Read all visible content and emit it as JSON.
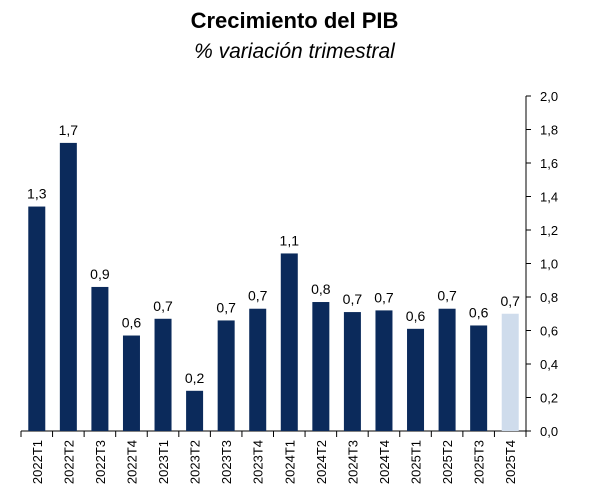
{
  "chart_data": {
    "type": "bar",
    "title": "Crecimiento del PIB",
    "subtitle": "% variación trimestral",
    "categories": [
      "2022T1",
      "2022T2",
      "2022T3",
      "2022T4",
      "2023T1",
      "2023T2",
      "2023T3",
      "2023T4",
      "2024T1",
      "2024T2",
      "2024T3",
      "2024T4",
      "2025T1",
      "2025T2",
      "2025T3",
      "2025T4"
    ],
    "values": [
      1.34,
      1.72,
      0.86,
      0.57,
      0.67,
      0.24,
      0.66,
      0.73,
      1.06,
      0.77,
      0.71,
      0.72,
      0.61,
      0.73,
      0.63,
      0.7
    ],
    "data_labels": [
      "1,3",
      "1,7",
      "0,9",
      "0,6",
      "0,7",
      "0,2",
      "0,7",
      "0,7",
      "1,1",
      "0,8",
      "0,7",
      "0,7",
      "0,6",
      "0,7",
      "0,6",
      "0,7"
    ],
    "bar_colors": [
      "#0b2a5b",
      "#0b2a5b",
      "#0b2a5b",
      "#0b2a5b",
      "#0b2a5b",
      "#0b2a5b",
      "#0b2a5b",
      "#0b2a5b",
      "#0b2a5b",
      "#0b2a5b",
      "#0b2a5b",
      "#0b2a5b",
      "#0b2a5b",
      "#0b2a5b",
      "#0b2a5b",
      "#cfdcec"
    ],
    "ylim": [
      0,
      2.0
    ],
    "yticks": [
      "0,0",
      "0,2",
      "0,4",
      "0,6",
      "0,8",
      "1,0",
      "1,2",
      "1,4",
      "1,6",
      "1,8",
      "2,0"
    ],
    "y_axis_position": "right",
    "grid": false,
    "legend": "none"
  }
}
